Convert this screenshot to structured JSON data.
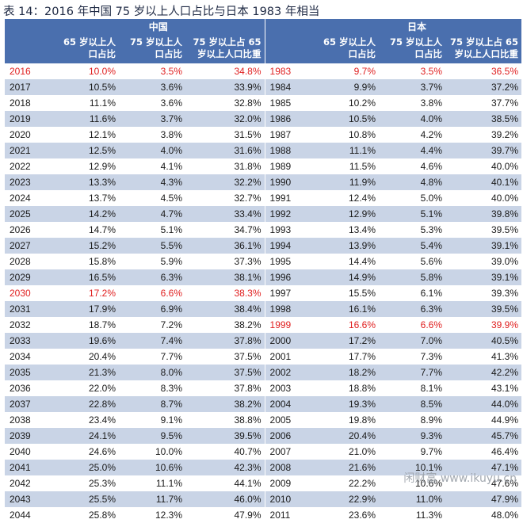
{
  "title": "表 14：2016 年中国 75 岁以上人口占比与日本 1983 年相当",
  "header": {
    "china": "中国",
    "japan": "日本",
    "col_65": "65 岁以上人口占比",
    "col_75": "75 岁以上人口占比",
    "col_ratio": "75 岁以上占 65 岁以上人口比重"
  },
  "rows": [
    {
      "cy": "2016",
      "c65": "10.0%",
      "c75": "3.5%",
      "cr": "34.8%",
      "jy": "1983",
      "j65": "9.7%",
      "j75": "3.5%",
      "jr": "36.5%",
      "chl": true,
      "jhl": true
    },
    {
      "cy": "2017",
      "c65": "10.5%",
      "c75": "3.6%",
      "cr": "33.9%",
      "jy": "1984",
      "j65": "9.9%",
      "j75": "3.7%",
      "jr": "37.2%"
    },
    {
      "cy": "2018",
      "c65": "11.1%",
      "c75": "3.6%",
      "cr": "32.8%",
      "jy": "1985",
      "j65": "10.2%",
      "j75": "3.8%",
      "jr": "37.7%"
    },
    {
      "cy": "2019",
      "c65": "11.6%",
      "c75": "3.7%",
      "cr": "32.0%",
      "jy": "1986",
      "j65": "10.5%",
      "j75": "4.0%",
      "jr": "38.5%"
    },
    {
      "cy": "2020",
      "c65": "12.1%",
      "c75": "3.8%",
      "cr": "31.5%",
      "jy": "1987",
      "j65": "10.8%",
      "j75": "4.2%",
      "jr": "39.2%"
    },
    {
      "cy": "2021",
      "c65": "12.5%",
      "c75": "4.0%",
      "cr": "31.6%",
      "jy": "1988",
      "j65": "11.1%",
      "j75": "4.4%",
      "jr": "39.7%"
    },
    {
      "cy": "2022",
      "c65": "12.9%",
      "c75": "4.1%",
      "cr": "31.8%",
      "jy": "1989",
      "j65": "11.5%",
      "j75": "4.6%",
      "jr": "40.0%"
    },
    {
      "cy": "2023",
      "c65": "13.3%",
      "c75": "4.3%",
      "cr": "32.2%",
      "jy": "1990",
      "j65": "11.9%",
      "j75": "4.8%",
      "jr": "40.1%"
    },
    {
      "cy": "2024",
      "c65": "13.7%",
      "c75": "4.5%",
      "cr": "32.7%",
      "jy": "1991",
      "j65": "12.4%",
      "j75": "5.0%",
      "jr": "40.0%"
    },
    {
      "cy": "2025",
      "c65": "14.2%",
      "c75": "4.7%",
      "cr": "33.4%",
      "jy": "1992",
      "j65": "12.9%",
      "j75": "5.1%",
      "jr": "39.8%"
    },
    {
      "cy": "2026",
      "c65": "14.7%",
      "c75": "5.1%",
      "cr": "34.7%",
      "jy": "1993",
      "j65": "13.4%",
      "j75": "5.3%",
      "jr": "39.5%"
    },
    {
      "cy": "2027",
      "c65": "15.2%",
      "c75": "5.5%",
      "cr": "36.1%",
      "jy": "1994",
      "j65": "13.9%",
      "j75": "5.4%",
      "jr": "39.1%"
    },
    {
      "cy": "2028",
      "c65": "15.8%",
      "c75": "5.9%",
      "cr": "37.3%",
      "jy": "1995",
      "j65": "14.4%",
      "j75": "5.6%",
      "jr": "39.0%"
    },
    {
      "cy": "2029",
      "c65": "16.5%",
      "c75": "6.3%",
      "cr": "38.1%",
      "jy": "1996",
      "j65": "14.9%",
      "j75": "5.8%",
      "jr": "39.1%"
    },
    {
      "cy": "2030",
      "c65": "17.2%",
      "c75": "6.6%",
      "cr": "38.3%",
      "jy": "1997",
      "j65": "15.5%",
      "j75": "6.1%",
      "jr": "39.3%",
      "chl": true
    },
    {
      "cy": "2031",
      "c65": "17.9%",
      "c75": "6.9%",
      "cr": "38.4%",
      "jy": "1998",
      "j65": "16.1%",
      "j75": "6.3%",
      "jr": "39.5%"
    },
    {
      "cy": "2032",
      "c65": "18.7%",
      "c75": "7.2%",
      "cr": "38.2%",
      "jy": "1999",
      "j65": "16.6%",
      "j75": "6.6%",
      "jr": "39.9%",
      "jhl": true
    },
    {
      "cy": "2033",
      "c65": "19.6%",
      "c75": "7.4%",
      "cr": "37.8%",
      "jy": "2000",
      "j65": "17.2%",
      "j75": "7.0%",
      "jr": "40.5%"
    },
    {
      "cy": "2034",
      "c65": "20.4%",
      "c75": "7.7%",
      "cr": "37.5%",
      "jy": "2001",
      "j65": "17.7%",
      "j75": "7.3%",
      "jr": "41.3%"
    },
    {
      "cy": "2035",
      "c65": "21.3%",
      "c75": "8.0%",
      "cr": "37.5%",
      "jy": "2002",
      "j65": "18.2%",
      "j75": "7.7%",
      "jr": "42.2%"
    },
    {
      "cy": "2036",
      "c65": "22.0%",
      "c75": "8.3%",
      "cr": "37.8%",
      "jy": "2003",
      "j65": "18.8%",
      "j75": "8.1%",
      "jr": "43.1%"
    },
    {
      "cy": "2037",
      "c65": "22.8%",
      "c75": "8.7%",
      "cr": "38.2%",
      "jy": "2004",
      "j65": "19.3%",
      "j75": "8.5%",
      "jr": "44.0%"
    },
    {
      "cy": "2038",
      "c65": "23.4%",
      "c75": "9.1%",
      "cr": "38.8%",
      "jy": "2005",
      "j65": "19.8%",
      "j75": "8.9%",
      "jr": "44.9%"
    },
    {
      "cy": "2039",
      "c65": "24.1%",
      "c75": "9.5%",
      "cr": "39.5%",
      "jy": "2006",
      "j65": "20.4%",
      "j75": "9.3%",
      "jr": "45.7%"
    },
    {
      "cy": "2040",
      "c65": "24.6%",
      "c75": "10.0%",
      "cr": "40.7%",
      "jy": "2007",
      "j65": "21.0%",
      "j75": "9.7%",
      "jr": "46.4%"
    },
    {
      "cy": "2041",
      "c65": "25.0%",
      "c75": "10.6%",
      "cr": "42.3%",
      "jy": "2008",
      "j65": "21.6%",
      "j75": "10.1%",
      "jr": "47.1%"
    },
    {
      "cy": "2042",
      "c65": "25.3%",
      "c75": "11.1%",
      "cr": "44.1%",
      "jy": "2009",
      "j65": "22.2%",
      "j75": "10.6%",
      "jr": "47.6%"
    },
    {
      "cy": "2043",
      "c65": "25.5%",
      "c75": "11.7%",
      "cr": "46.0%",
      "jy": "2010",
      "j65": "22.9%",
      "j75": "11.0%",
      "jr": "47.9%"
    },
    {
      "cy": "2044",
      "c65": "25.8%",
      "c75": "12.3%",
      "cr": "47.9%",
      "jy": "2011",
      "j65": "23.6%",
      "j75": "11.3%",
      "jr": "48.0%"
    }
  ],
  "watermark": "闲财富 www.ikuyu.cn",
  "colors": {
    "header_bg": "#4a6fae",
    "stripe": "#c9d4e6",
    "highlight": "#e02020"
  }
}
